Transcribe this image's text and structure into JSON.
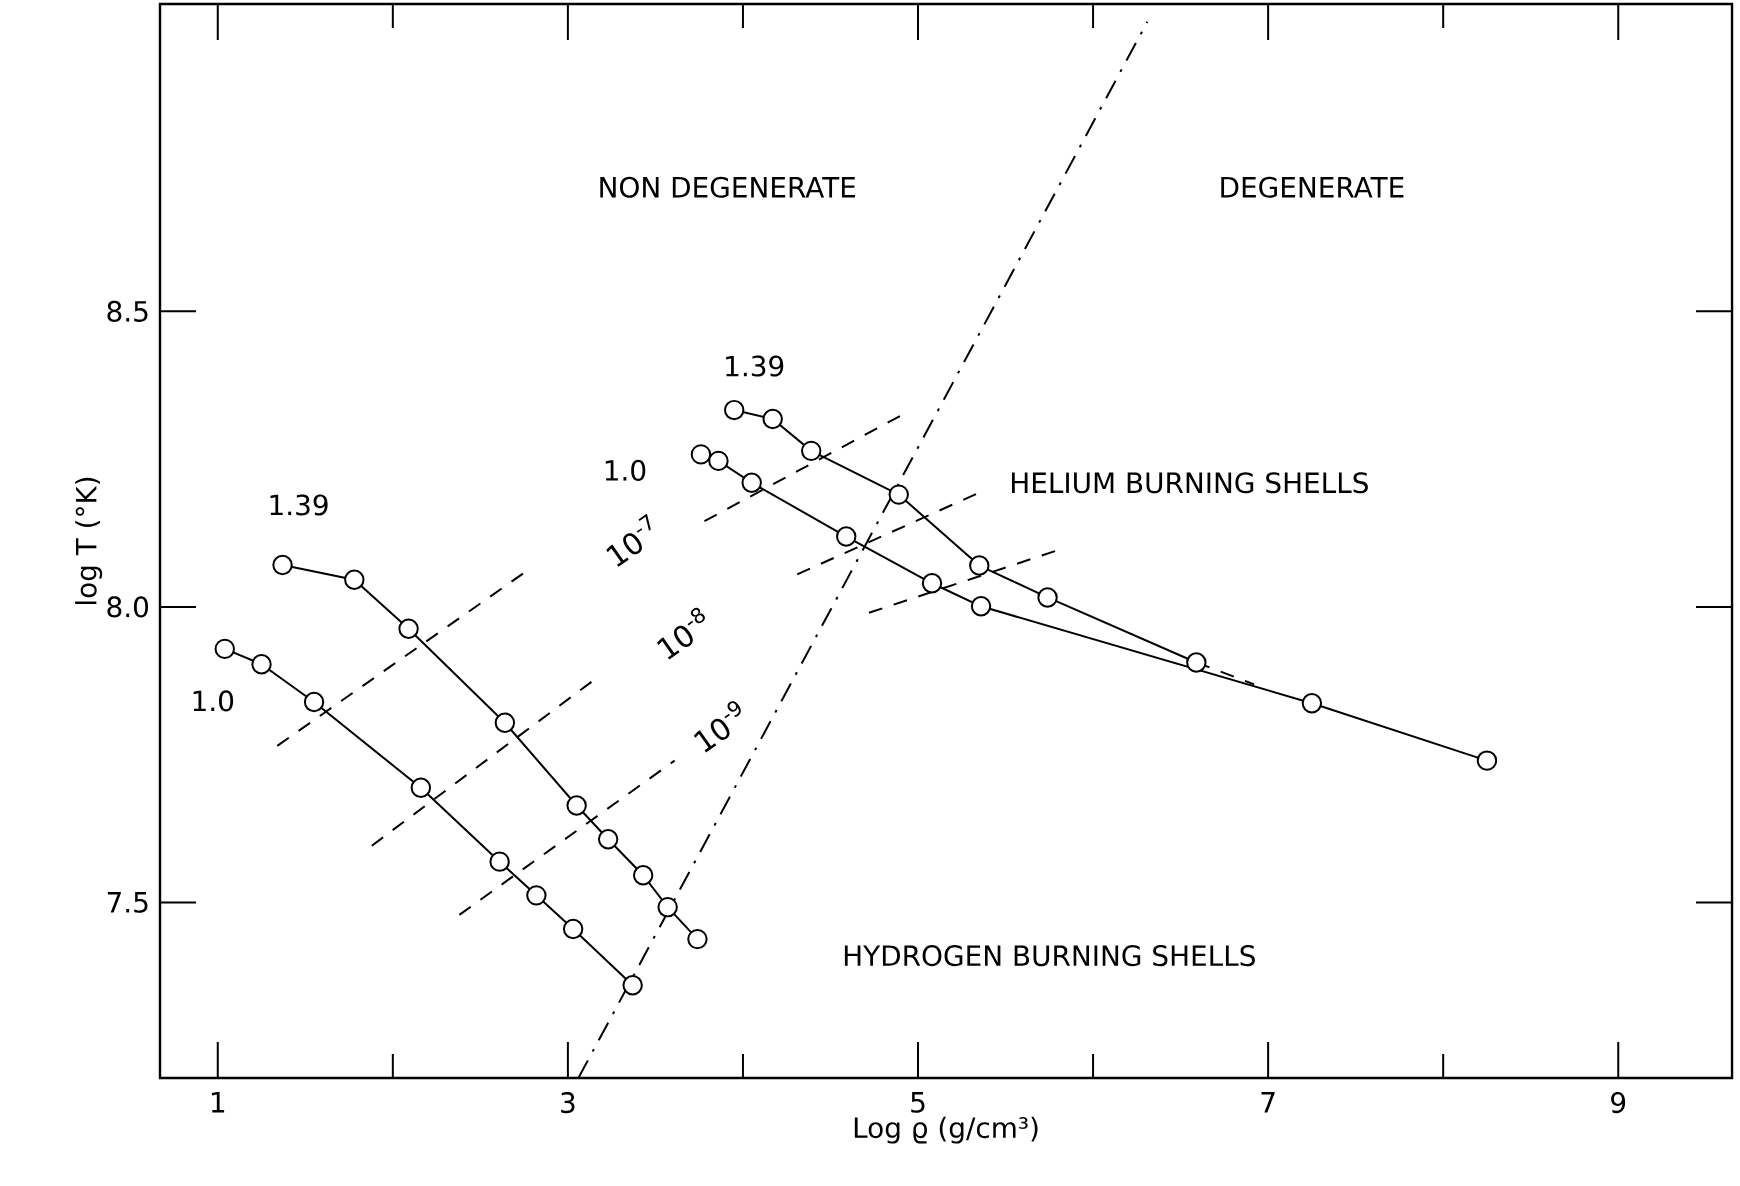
{
  "chart_data": {
    "type": "line",
    "xlabel": "Log ϱ (g/cm³)",
    "ylabel": "log T (°K)",
    "xlim": [
      0.67,
      9.65
    ],
    "ylim": [
      7.203,
      9.02
    ],
    "xticks": [
      1,
      {
        "value": 2,
        "label": null
      },
      3,
      {
        "value": 4,
        "label": null
      },
      5,
      {
        "value": 6,
        "label": null
      },
      7,
      {
        "value": 8,
        "label": null
      },
      9
    ],
    "yticks": [
      7.5,
      {
        "value": 8,
        "label": "8.0"
      },
      8.5
    ],
    "marker": "circle",
    "line_style": "solid",
    "annotations": [
      "NON DEGENERATE",
      "DEGENERATE",
      "HELIUM BURNING SHELLS",
      "HYDROGEN BURNING SHELLS"
    ],
    "series": [
      {
        "name": "1.0",
        "color": "#000000",
        "x": [
          1.04,
          1.25,
          1.55,
          2.16,
          2.61,
          2.82,
          3.03,
          3.37
        ],
        "values": [
          7.929,
          7.903,
          7.839,
          7.694,
          7.569,
          7.512,
          7.455,
          7.36
        ]
      },
      {
        "name": "1.39",
        "color": "#000000",
        "x": [
          1.37,
          1.78,
          2.09,
          2.64,
          3.05,
          3.23,
          3.43,
          3.57,
          3.74
        ],
        "values": [
          8.071,
          8.046,
          7.963,
          7.804,
          7.664,
          7.607,
          7.546,
          7.492,
          7.438
        ]
      },
      {
        "name": "1.0",
        "color": "#000000",
        "x": [
          3.76,
          3.86,
          4.05,
          4.59,
          5.08,
          5.36,
          7.25,
          8.25
        ],
        "values": [
          8.258,
          8.247,
          8.21,
          8.119,
          8.04,
          8.001,
          7.837,
          7.74
        ]
      },
      {
        "name": "1.39",
        "color": "#000000",
        "x": [
          3.95,
          4.17,
          4.39,
          4.89,
          5.35,
          5.74,
          6.59
        ],
        "values": [
          8.333,
          8.318,
          8.264,
          8.19,
          8.07,
          8.016,
          7.906
        ]
      },
      {
        "name": "10$^{-7}$",
        "color": "#000000",
        "marker": "none",
        "line_style": "dashed",
        "x": [
          1.34,
          2.79,
          3.37,
          3.78,
          4.91
        ],
        "values": [
          7.765,
          8.066,
          null,
          8.145,
          8.325
        ]
      },
      {
        "name": "10$^{-8}$",
        "color": "#000000",
        "marker": "none",
        "line_style": "dashed",
        "x": [
          1.88,
          3.17,
          3.66,
          4.31,
          5.37
        ],
        "values": [
          7.596,
          7.881,
          null,
          8.055,
          8.196
        ]
      },
      {
        "name": "10$^{-9}$",
        "color": "#000000",
        "marker": "none",
        "line_style": "dashed",
        "x": [
          2.38,
          3.61,
          3.87,
          4.72,
          5.82
        ],
        "values": [
          7.479,
          7.74,
          null,
          7.99,
          8.098
        ]
      },
      {
        "color": "#000000",
        "marker": "none",
        "line_style": "dashed",
        "x": [
          6.59,
          6.92
        ],
        "values": [
          7.906,
          7.869
        ]
      },
      {
        "color": "#000000",
        "marker": "none",
        "line_style": "dashdot",
        "x": [
          3.06,
          6.31
        ],
        "values": [
          7.203,
          8.99
        ]
      }
    ]
  }
}
